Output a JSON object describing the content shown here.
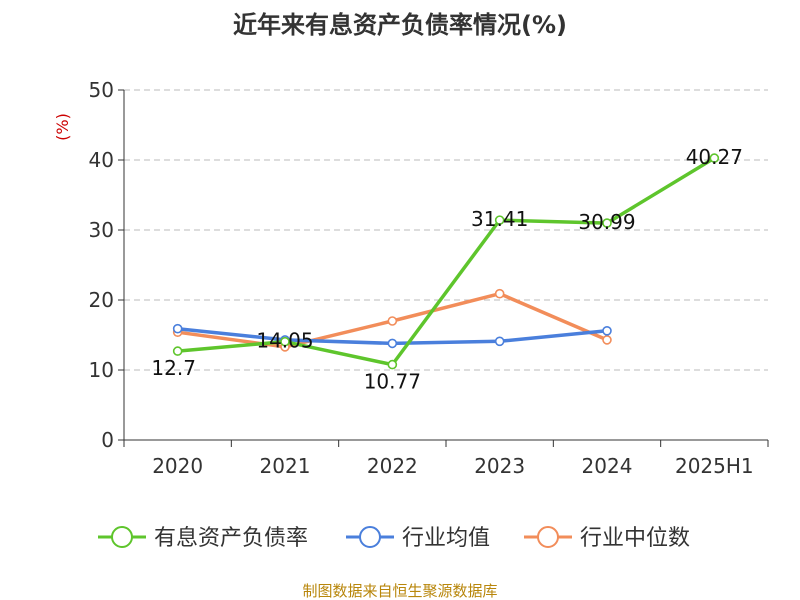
{
  "title": "近年来有息资产负债率情况(%)",
  "source": "制图数据来自恒生聚源数据库",
  "chart_data": {
    "type": "line",
    "title": "近年来有息资产负债率情况(%)",
    "ylabel": "(%)",
    "ylim": [
      0,
      50
    ],
    "yticks": [
      0,
      10,
      20,
      30,
      40,
      50
    ],
    "grid": true,
    "legend_position": "bottom",
    "categories": [
      "2020",
      "2021",
      "2022",
      "2023",
      "2024",
      "2025H1"
    ],
    "series": [
      {
        "name": "有息资产负债率",
        "color": "#5ec52c",
        "values": [
          12.7,
          14.05,
          10.77,
          31.41,
          30.99,
          40.27
        ],
        "labels": [
          "12.7",
          "14.05",
          "10.77",
          "31.41",
          "30.99",
          "40.27"
        ]
      },
      {
        "name": "行业均值",
        "color": "#4a7fdc",
        "values": [
          15.9,
          14.3,
          13.8,
          14.1,
          15.6,
          null
        ]
      },
      {
        "name": "行业中位数",
        "color": "#f28d5a",
        "values": [
          15.4,
          13.3,
          17.0,
          20.9,
          14.3,
          null
        ]
      }
    ]
  }
}
